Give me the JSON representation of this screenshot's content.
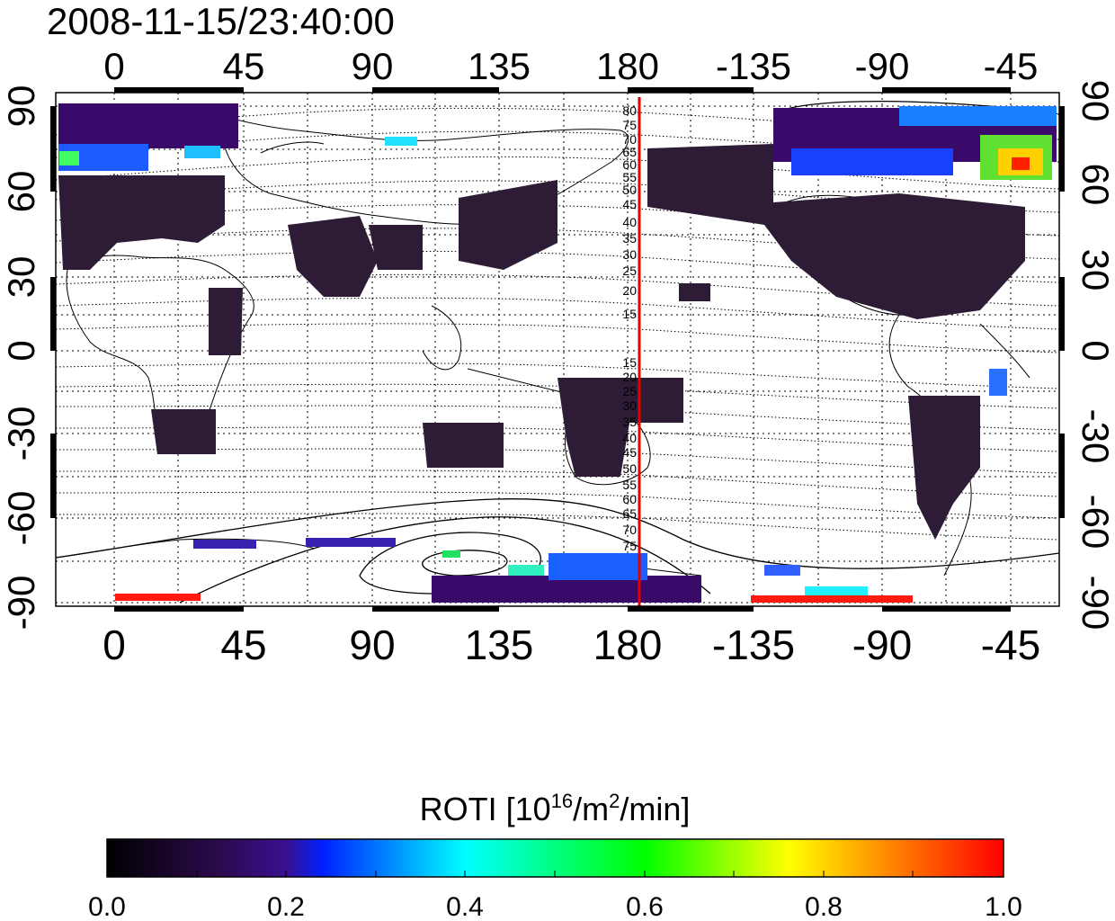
{
  "timestamp": "2008-11-15/23:40:00",
  "map": {
    "x_tick_labels": [
      "0",
      "45",
      "90",
      "135",
      "180",
      "-135",
      "-90",
      "-45"
    ],
    "left_y_tick_labels": [
      "90",
      "60",
      "30",
      "0",
      "-30",
      "-60",
      "-90"
    ],
    "right_y_tick_labels": [
      "90",
      "60",
      "30",
      "0",
      "-30",
      "-60",
      "-90"
    ],
    "marker_longitude": 183,
    "contour_labels_north": [
      "80",
      "75",
      "70",
      "65",
      "60",
      "55",
      "50",
      "45",
      "40",
      "35",
      "30",
      "25",
      "20",
      "15"
    ],
    "contour_labels_south": [
      "15",
      "20",
      "25",
      "30",
      "35",
      "40",
      "45",
      "50",
      "55",
      "60",
      "65",
      "70",
      "75"
    ],
    "grid": true
  },
  "colorbar": {
    "title": "ROTI  [10",
    "title_sup1": "16",
    "title_mid": "/m",
    "title_sup2": "2",
    "title_end": "/min]",
    "tick_labels": [
      "0.0",
      "0.2",
      "0.4",
      "0.6",
      "0.8",
      "1.0"
    ],
    "colors": [
      "#000000",
      "#3a0a6a",
      "#0030ff",
      "#00ffff",
      "#00ff00",
      "#ffff00",
      "#ff0000"
    ]
  },
  "colors": {
    "land_fill": "#2e1c36",
    "marker_line": "#e00000",
    "frame": "#000000"
  }
}
